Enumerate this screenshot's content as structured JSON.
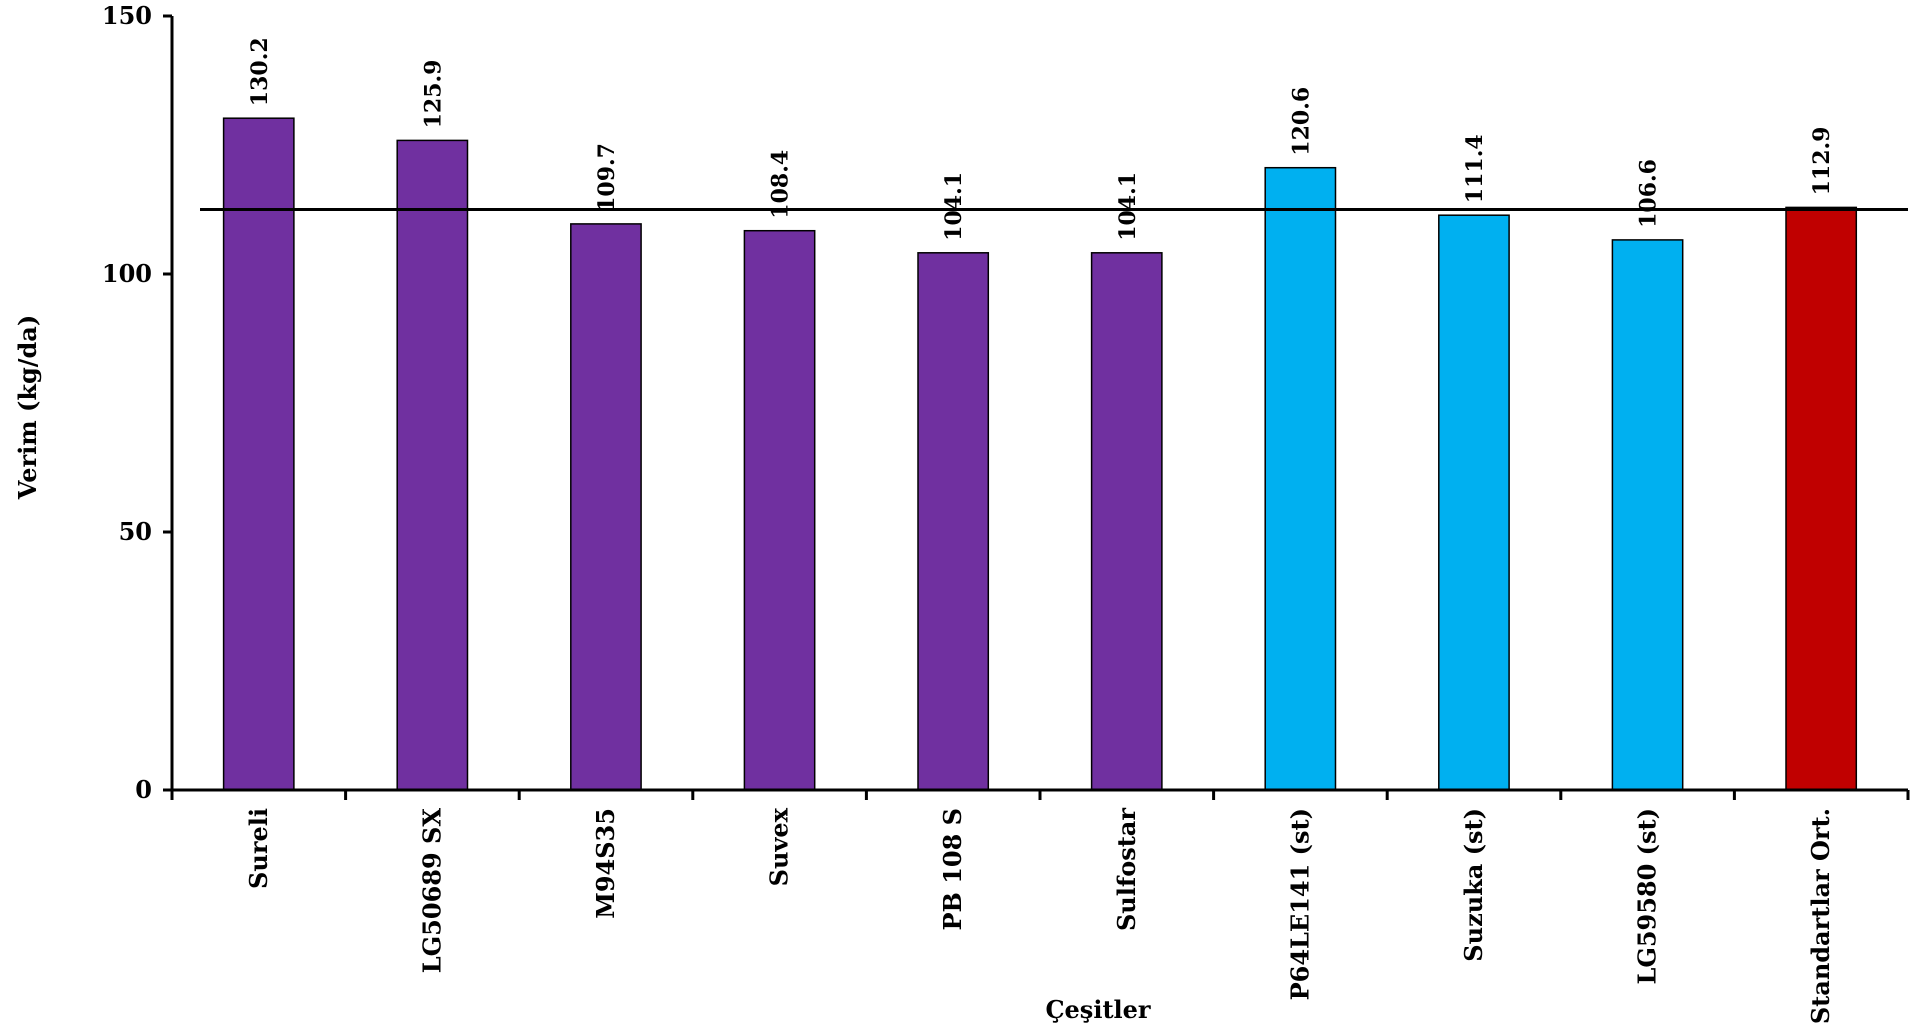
{
  "chart_data": {
    "type": "bar",
    "title": "",
    "xlabel": "Çeşitler",
    "ylabel": "Verim (kg/da)",
    "ylim": [
      0,
      150
    ],
    "yticks": [
      0,
      50,
      100,
      150
    ],
    "categories": [
      "Sureli",
      "LG50689 SX",
      "M94S35",
      "Suvex",
      "PB 108 S",
      "Sulfostar",
      "P64LE141 (st)",
      "Suzuka (st)",
      "LG59580 (st)",
      "Standartlar Ort."
    ],
    "values": [
      130.2,
      125.9,
      109.7,
      108.4,
      104.1,
      104.1,
      120.6,
      111.4,
      106.6,
      112.9
    ],
    "data_labels": [
      "130.2",
      "125.9",
      "109.7",
      "108.4",
      "104.1",
      "104.1",
      "120.6",
      "111.4",
      "106.6",
      "112.9"
    ],
    "bar_colors": [
      "#7030a0",
      "#7030a0",
      "#7030a0",
      "#7030a0",
      "#7030a0",
      "#7030a0",
      "#00b0f0",
      "#00b0f0",
      "#00b0f0",
      "#c00000"
    ],
    "reference_line": {
      "value": 112.5,
      "color": "#000000"
    },
    "grid": false,
    "legend": "none"
  }
}
